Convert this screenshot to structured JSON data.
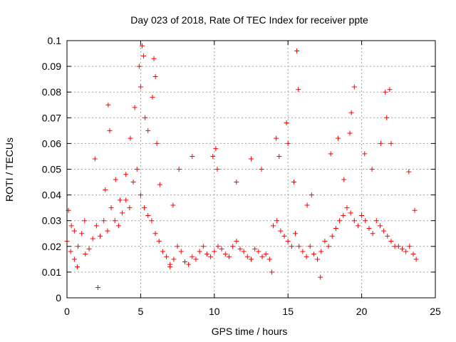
{
  "chart_data": {
    "type": "scatter",
    "title": "Day 023 of 2018, Rate Of TEC Index for receiver ppte",
    "xlabel": "GPS time / hours",
    "ylabel": "ROTI / TECUs",
    "xlim": [
      0,
      25
    ],
    "ylim": [
      0,
      0.1
    ],
    "xticks": [
      "0",
      "5",
      "10",
      "15",
      "20",
      "25"
    ],
    "yticks": [
      "0",
      "0.01",
      "0.02",
      "0.03",
      "0.04",
      "0.05",
      "0.06",
      "0.07",
      "0.08",
      "0.09",
      "0.1"
    ],
    "grid": true,
    "marker": "plus",
    "color": "#ff0000",
    "series": [
      {
        "x": [
          0.0,
          0.25,
          0.5,
          0.75,
          1.0,
          1.25,
          1.5,
          1.75,
          2.0,
          2.25,
          2.5,
          2.75,
          3.0,
          3.25,
          3.5,
          3.75,
          4.0,
          4.25,
          4.5,
          4.75,
          5.0,
          5.25,
          5.5,
          5.75,
          6.0,
          6.25,
          6.5,
          6.75,
          7.0,
          7.25,
          7.5,
          7.75,
          8.0,
          8.25,
          8.5,
          8.75,
          9.0,
          9.25,
          9.5,
          9.75,
          10.0,
          10.25,
          10.5,
          10.75,
          11.0,
          11.25,
          11.5,
          11.75,
          12.0,
          12.25,
          12.5,
          12.75,
          13.0,
          13.25,
          13.5,
          13.75,
          14.0,
          14.25,
          14.5,
          14.75,
          15.0,
          15.25,
          15.5,
          15.75,
          16.0,
          16.25,
          16.5,
          16.75,
          17.0,
          17.25,
          17.5,
          17.75,
          18.0,
          18.25,
          18.5,
          18.75,
          19.0,
          19.25,
          19.5,
          19.75,
          20.0,
          20.25,
          20.5,
          20.75,
          21.0,
          21.25,
          21.5,
          21.75,
          22.0,
          22.25,
          22.5,
          22.75,
          23.0,
          23.25,
          23.5,
          23.7
        ],
        "y": [
          0.022,
          0.018,
          0.015,
          0.02,
          0.025,
          0.017,
          0.019,
          0.023,
          0.028,
          0.024,
          0.03,
          0.026,
          0.035,
          0.03,
          0.028,
          0.033,
          0.038,
          0.035,
          0.045,
          0.05,
          0.04,
          0.035,
          0.032,
          0.03,
          0.025,
          0.022,
          0.018,
          0.016,
          0.013,
          0.015,
          0.02,
          0.018,
          0.014,
          0.013,
          0.016,
          0.015,
          0.018,
          0.02,
          0.017,
          0.016,
          0.018,
          0.02,
          0.019,
          0.017,
          0.016,
          0.02,
          0.022,
          0.019,
          0.018,
          0.016,
          0.015,
          0.019,
          0.018,
          0.016,
          0.017,
          0.015,
          0.028,
          0.03,
          0.026,
          0.024,
          0.022,
          0.02,
          0.025,
          0.02,
          0.018,
          0.016,
          0.02,
          0.017,
          0.015,
          0.018,
          0.022,
          0.02,
          0.024,
          0.027,
          0.03,
          0.032,
          0.035,
          0.033,
          0.03,
          0.028,
          0.032,
          0.03,
          0.027,
          0.025,
          0.03,
          0.028,
          0.026,
          0.024,
          0.022,
          0.02,
          0.02,
          0.019,
          0.018,
          0.02,
          0.017,
          0.015
        ]
      },
      {
        "x": [
          0.1,
          0.3,
          0.5,
          0.7,
          1.2,
          1.9,
          2.1,
          2.6,
          2.8,
          2.9,
          3.3,
          3.6,
          4.0,
          4.3,
          4.6,
          4.9,
          5.0,
          5.1,
          5.2,
          5.3,
          5.5,
          5.8,
          5.9,
          6.0,
          6.1,
          6.3,
          7.0,
          7.2,
          7.6,
          8.5,
          9.9,
          10.1,
          10.2,
          11.5,
          12.5,
          13.2,
          13.9,
          14.2,
          14.4,
          14.9,
          15.0,
          15.4,
          15.6,
          15.7,
          16.3,
          16.6,
          17.2,
          17.9,
          18.4,
          18.8,
          19.2,
          19.3,
          19.5,
          20.2,
          20.7,
          21.3,
          21.6,
          21.7,
          21.9,
          22.0,
          23.2,
          23.6
        ],
        "y": [
          0.034,
          0.028,
          0.026,
          0.012,
          0.03,
          0.054,
          0.004,
          0.042,
          0.075,
          0.065,
          0.046,
          0.038,
          0.048,
          0.062,
          0.074,
          0.09,
          0.082,
          0.098,
          0.094,
          0.07,
          0.065,
          0.078,
          0.093,
          0.086,
          0.06,
          0.044,
          0.012,
          0.036,
          0.05,
          0.055,
          0.055,
          0.058,
          0.05,
          0.045,
          0.054,
          0.05,
          0.01,
          0.062,
          0.055,
          0.068,
          0.06,
          0.045,
          0.096,
          0.081,
          0.036,
          0.04,
          0.008,
          0.056,
          0.062,
          0.046,
          0.064,
          0.072,
          0.082,
          0.056,
          0.05,
          0.06,
          0.08,
          0.07,
          0.081,
          0.06,
          0.049,
          0.034
        ]
      }
    ]
  }
}
